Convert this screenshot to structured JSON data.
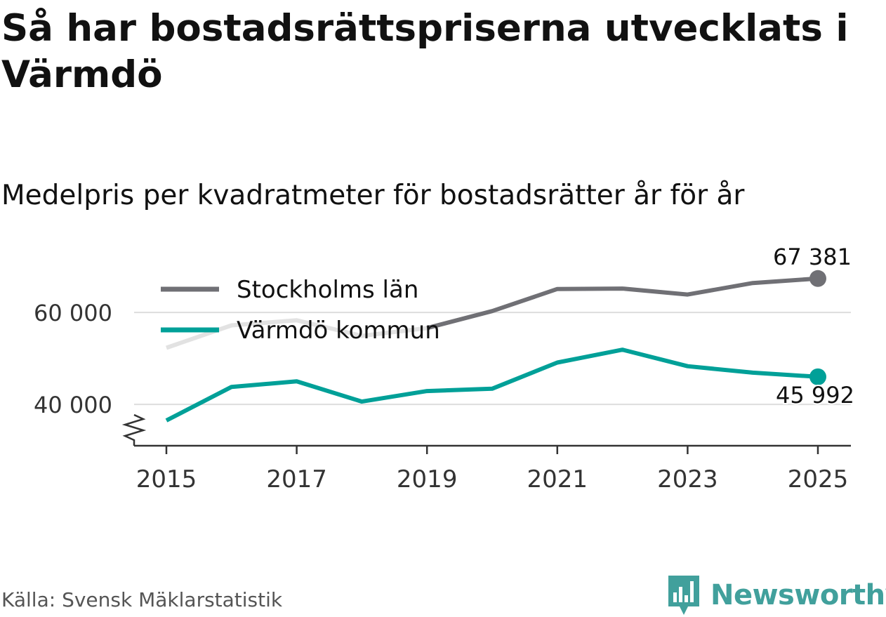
{
  "header": {
    "title": "Så har bostadsrättspriserna utvecklats i Värmdö",
    "subtitle": "Medelpris per kvadratmeter för bostadsrätter år för år"
  },
  "footer": {
    "source": "Källa: Svensk Mäklarstatistik",
    "brand": "Newsworthy"
  },
  "colors": {
    "stockholm": "#707075",
    "stockholm_faded": "#e2e2e2",
    "varmdo": "#00a098",
    "grid": "#dddddd",
    "axis": "#333333",
    "brand": "#41a09c"
  },
  "chart_data": {
    "type": "line",
    "title": "Så har bostadsrättspriserna utvecklats i Värmdö",
    "subtitle": "Medelpris per kvadratmeter för bostadsrätter år för år",
    "xlabel": "",
    "ylabel": "",
    "x": [
      2015,
      2016,
      2017,
      2018,
      2019,
      2020,
      2021,
      2022,
      2023,
      2024,
      2025
    ],
    "x_ticks": [
      "2015",
      "2017",
      "2019",
      "2021",
      "2023",
      "2025"
    ],
    "y_ticks": [
      {
        "value": 40000,
        "label": "40 000"
      },
      {
        "value": 60000,
        "label": "60 000"
      }
    ],
    "ylim": [
      31000,
      73000
    ],
    "grid": true,
    "legend_position": "top-left",
    "series": [
      {
        "name": "Stockholms län",
        "values": [
          52300,
          57200,
          58300,
          54900,
          56600,
          60300,
          65100,
          65200,
          63900,
          66400,
          67381
        ],
        "end_label": "67 381"
      },
      {
        "name": "Värmdö kommun",
        "values": [
          36500,
          43800,
          45000,
          40600,
          42900,
          43400,
          49100,
          51900,
          48300,
          46900,
          45992
        ],
        "end_label": "45 992"
      }
    ]
  }
}
